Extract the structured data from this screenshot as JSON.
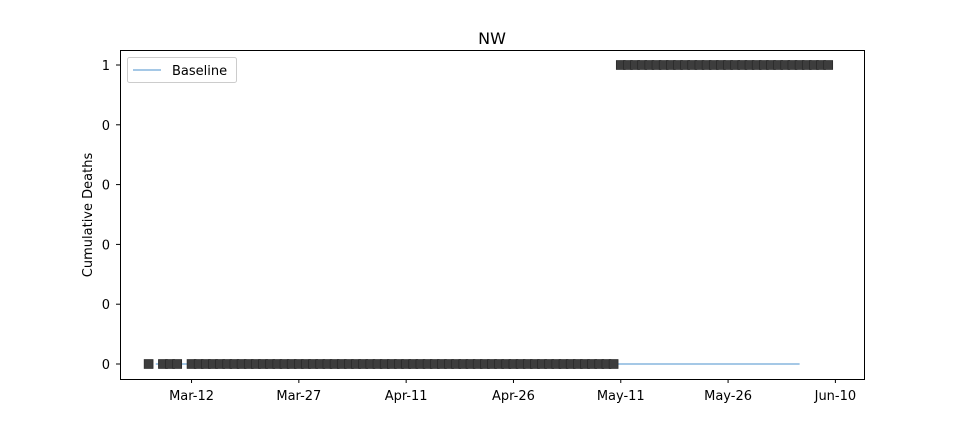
{
  "chart_data": {
    "type": "scatter",
    "title": "NW",
    "xlabel": "",
    "ylabel": "Cumulative Deaths",
    "x_ticks": [
      "Mar-12",
      "Mar-27",
      "Apr-11",
      "Apr-26",
      "May-11",
      "May-26",
      "Jun-10"
    ],
    "y_tick_labels": [
      "0",
      "0",
      "0",
      "0",
      "0",
      "1"
    ],
    "ylim": [
      0,
      1
    ],
    "xlim": [
      "2020-03-02",
      "2020-06-14"
    ],
    "grid": false,
    "legend": {
      "position": "top-left",
      "entries": [
        "Baseline"
      ]
    },
    "series": [
      {
        "name": "Baseline",
        "kind": "line",
        "color": "#6fa8d6",
        "x": [
          "2020-03-07",
          "2020-06-05"
        ],
        "y": [
          0,
          0
        ]
      },
      {
        "kind": "markers",
        "marker": "square",
        "color": "#3d3d3d",
        "ranges": [
          {
            "start": "2020-03-06",
            "end": "2020-03-06",
            "y": 0
          },
          {
            "start": "2020-03-08",
            "end": "2020-03-10",
            "y": 0
          },
          {
            "start": "2020-03-12",
            "end": "2020-05-10",
            "y": 0
          },
          {
            "start": "2020-05-11",
            "end": "2020-06-09",
            "y": 1
          }
        ]
      }
    ]
  }
}
